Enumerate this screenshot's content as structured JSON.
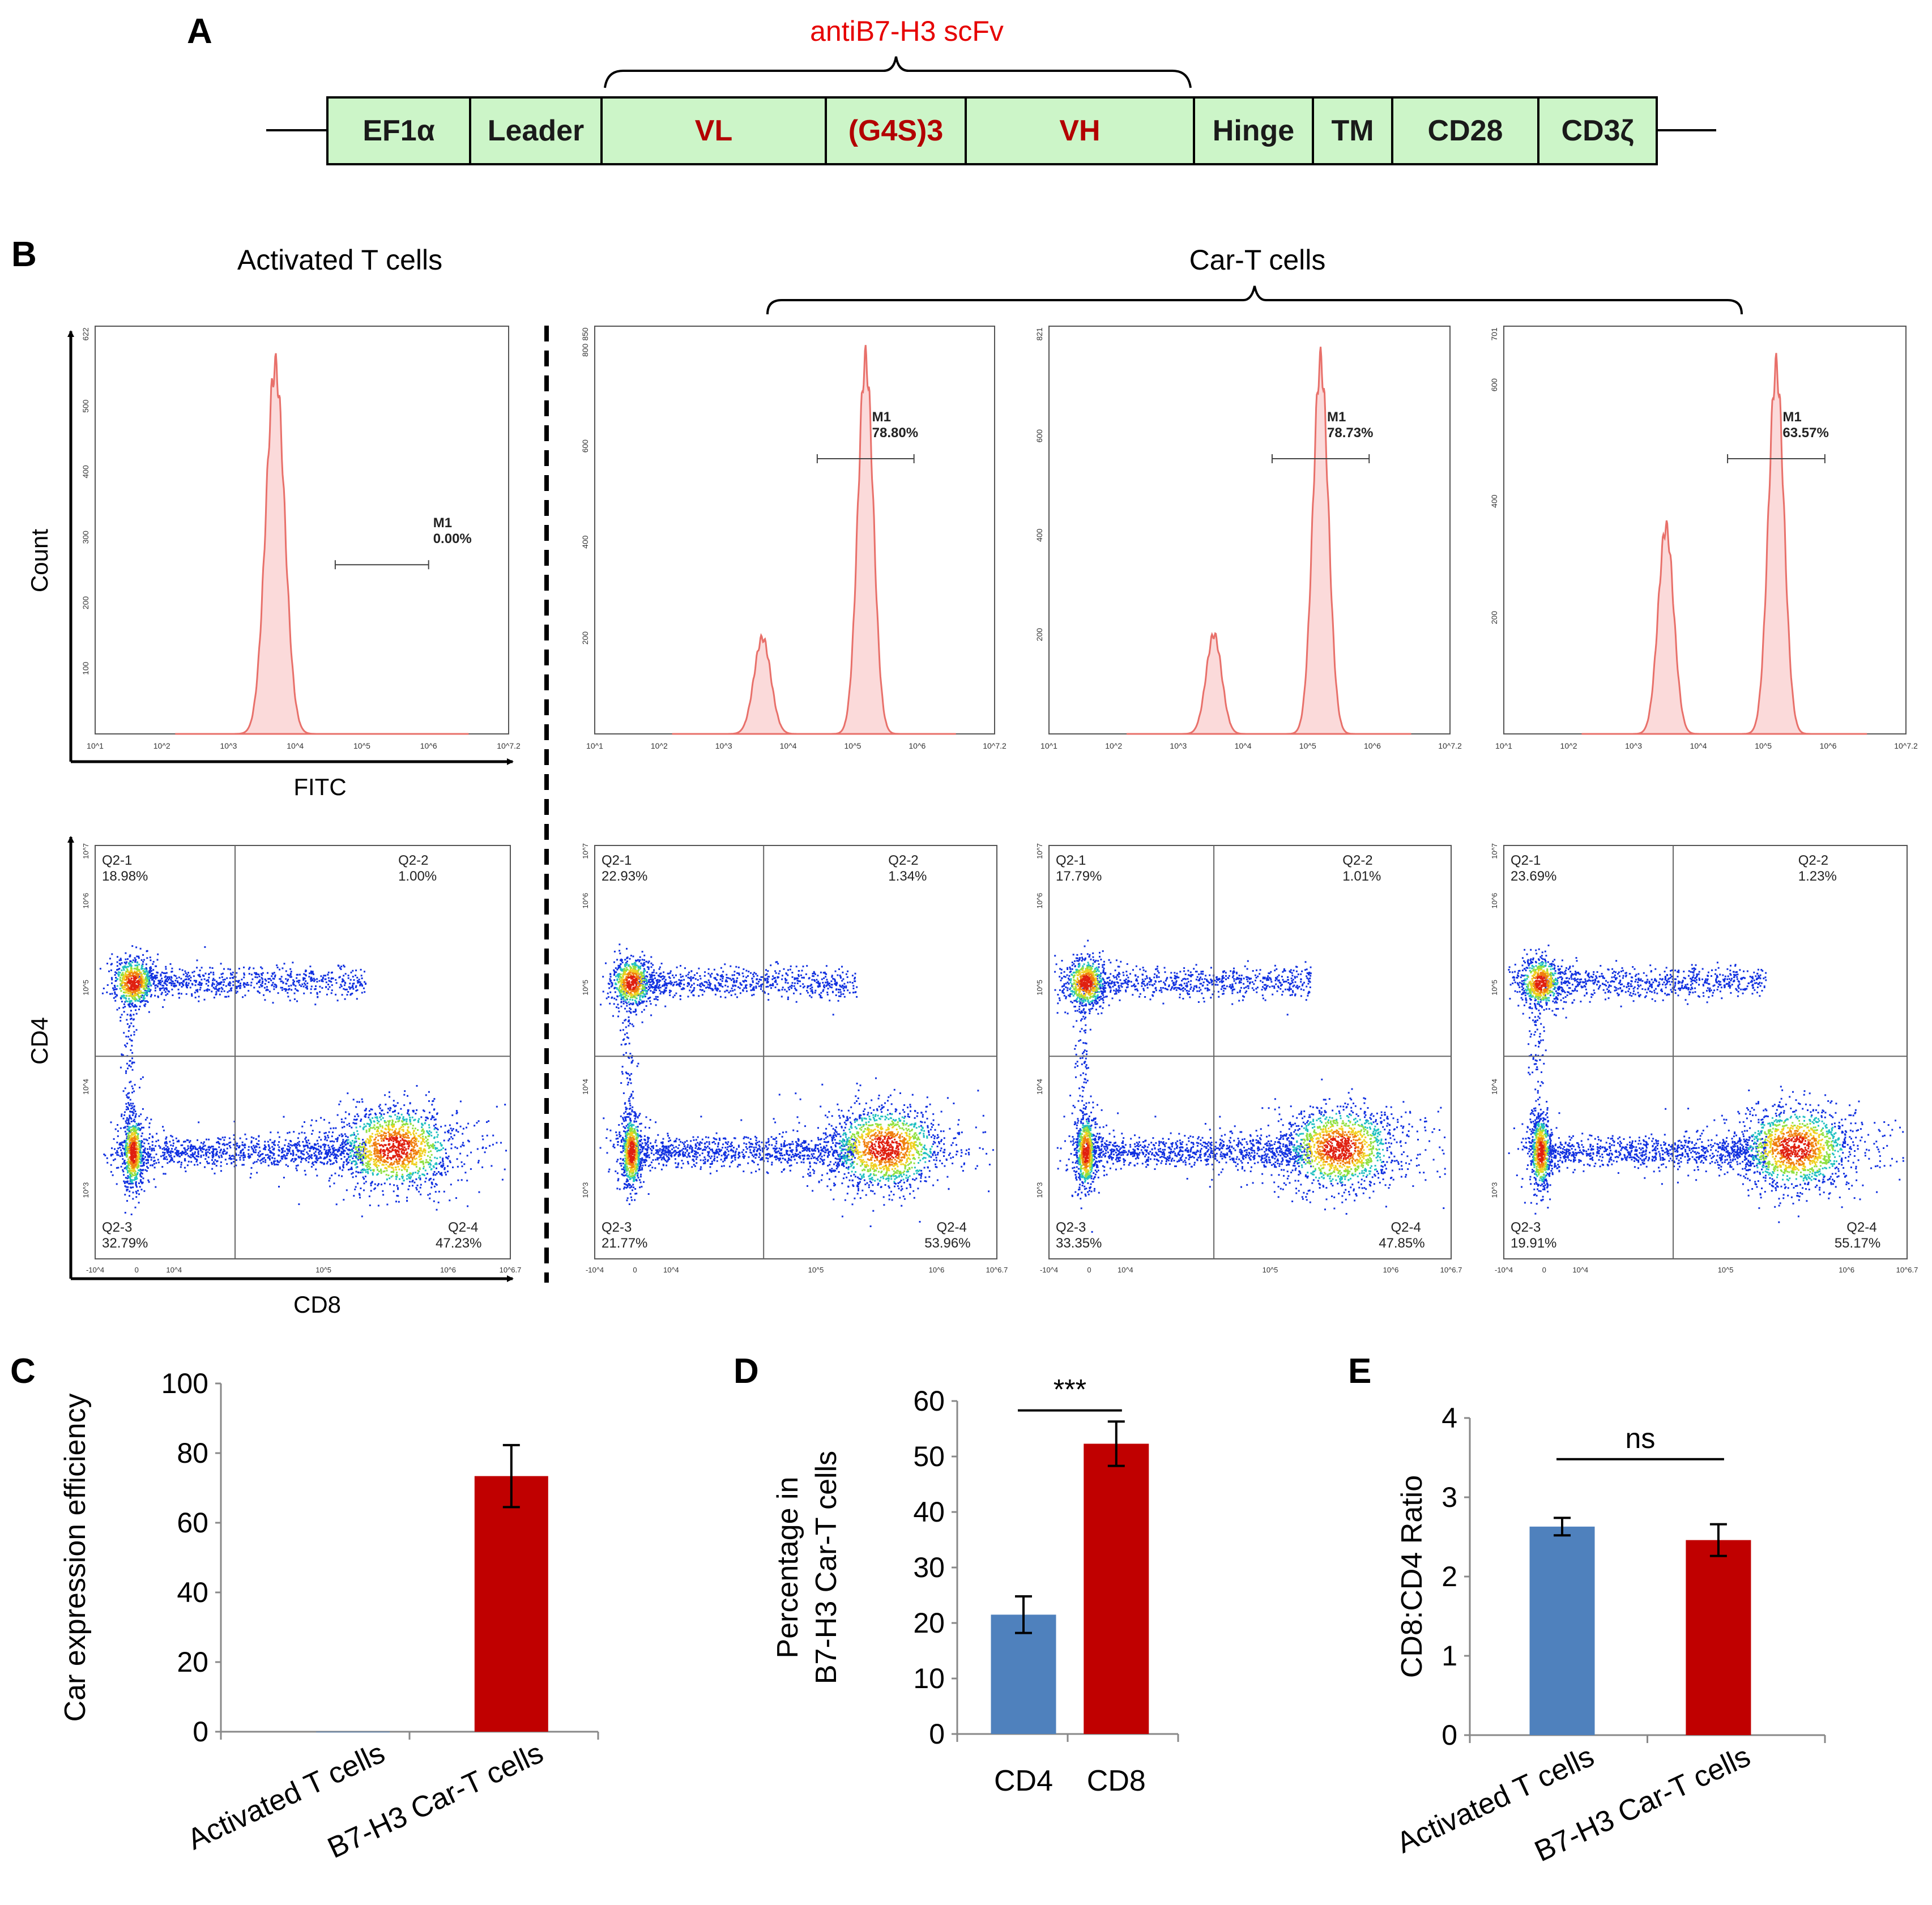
{
  "panel_labels": {
    "a": "A",
    "b": "B",
    "c": "C",
    "d": "D",
    "e": "E"
  },
  "construct": {
    "scfv_label": "antiB7-H3 scFv",
    "segments": [
      {
        "label": "EF1α",
        "color": "#1a1a1a"
      },
      {
        "label": "Leader",
        "color": "#1a1a1a"
      },
      {
        "label": "VL",
        "color": "#b30000"
      },
      {
        "label": "(G4S)3",
        "color": "#b30000"
      },
      {
        "label": "VH",
        "color": "#b30000"
      },
      {
        "label": "Hinge",
        "color": "#1a1a1a"
      },
      {
        "label": "TM",
        "color": "#1a1a1a"
      },
      {
        "label": "CD28",
        "color": "#1a1a1a"
      },
      {
        "label": "CD3ζ",
        "color": "#1a1a1a"
      }
    ],
    "box_fill": "#ccf5c8",
    "scfv_color": "#e60000"
  },
  "panel_b": {
    "left_title": "Activated T cells",
    "right_title": "Car-T cells",
    "hist_ylabel": "Count",
    "hist_xlabel": "FITC",
    "dot_ylabel": "CD4",
    "dot_xlabel": "CD8",
    "gate_name": "M1",
    "hist_x_ticks": [
      "10^1",
      "10^2",
      "10^3",
      "10^4",
      "10^5",
      "10^6",
      "10^7.2"
    ],
    "dot_x_ticks": [
      "-10^4",
      "0",
      "10^4",
      "10^5",
      "10^6",
      "10^6.7"
    ],
    "dot_y_ticks": [
      "10^7",
      "10^6",
      "10^5",
      "10^4",
      "10^3"
    ],
    "hist_color": "#e8706a",
    "histograms": [
      {
        "gate_pct": "0.00%",
        "ymax_tick": "622",
        "y_ticks": [
          "100",
          "200",
          "300",
          "400",
          "500"
        ],
        "peaks": [
          [
            3.7,
            560,
            0.14
          ]
        ]
      },
      {
        "gate_pct": "78.80%",
        "ymax_tick": "850",
        "y_ticks": [
          "200",
          "400",
          "600",
          "800"
        ],
        "peaks": [
          [
            3.6,
            200,
            0.13
          ],
          [
            5.2,
            780,
            0.12
          ]
        ]
      },
      {
        "gate_pct": "78.73%",
        "ymax_tick": "821",
        "y_ticks": [
          "200",
          "400",
          "600"
        ],
        "peaks": [
          [
            3.55,
            200,
            0.12
          ],
          [
            5.2,
            750,
            0.12
          ]
        ]
      },
      {
        "gate_pct": "63.57%",
        "ymax_tick": "701",
        "y_ticks": [
          "200",
          "400",
          "600"
        ],
        "peaks": [
          [
            3.5,
            355,
            0.12
          ],
          [
            5.2,
            630,
            0.12
          ]
        ]
      }
    ],
    "dot_plots": [
      {
        "q1": "Q2-1",
        "q1v": "18.98%",
        "q2": "Q2-2",
        "q2v": "1.00%",
        "q3": "Q2-3",
        "q3v": "32.79%",
        "q4": "Q2-4",
        "q4v": "47.23%"
      },
      {
        "q1": "Q2-1",
        "q1v": "22.93%",
        "q2": "Q2-2",
        "q2v": "1.34%",
        "q3": "Q2-3",
        "q3v": "21.77%",
        "q4": "Q2-4",
        "q4v": "53.96%"
      },
      {
        "q1": "Q2-1",
        "q1v": "17.79%",
        "q2": "Q2-2",
        "q2v": "1.01%",
        "q3": "Q2-3",
        "q3v": "33.35%",
        "q4": "Q2-4",
        "q4v": "47.85%"
      },
      {
        "q1": "Q2-1",
        "q1v": "23.69%",
        "q2": "Q2-2",
        "q2v": "1.23%",
        "q3": "Q2-3",
        "q3v": "19.91%",
        "q4": "Q2-4",
        "q4v": "55.17%"
      }
    ]
  },
  "chart_data": [
    {
      "type": "bar",
      "panel": "C",
      "title": "",
      "xlabel": "",
      "ylabel": "Car expression efficiency",
      "categories": [
        "Activated T cells",
        "B7-H3 Car-T cells"
      ],
      "values": [
        0,
        73.4
      ],
      "errors": [
        0,
        8.9
      ],
      "colors": [
        "#4f81bd",
        "#c00000"
      ],
      "ylim": [
        0,
        100
      ],
      "yticks": [
        0,
        20,
        40,
        60,
        80,
        100
      ],
      "significance": ""
    },
    {
      "type": "bar",
      "panel": "D",
      "title": "",
      "xlabel": "",
      "ylabel": "Percentage in B7-H3 Car-T cells",
      "categories": [
        "CD4",
        "CD8"
      ],
      "values": [
        21.5,
        52.3
      ],
      "errors": [
        3.3,
        4.0
      ],
      "colors": [
        "#4f81bd",
        "#c00000"
      ],
      "ylim": [
        0,
        60
      ],
      "yticks": [
        0,
        10,
        20,
        30,
        40,
        50,
        60
      ],
      "significance": "***"
    },
    {
      "type": "bar",
      "panel": "E",
      "title": "",
      "xlabel": "",
      "ylabel": "CD8:CD4 Ratio",
      "categories": [
        "Activated T cells",
        "B7-H3 Car-T cells"
      ],
      "values": [
        2.63,
        2.46
      ],
      "errors": [
        0.11,
        0.2
      ],
      "colors": [
        "#4f81bd",
        "#c00000"
      ],
      "ylim": [
        0,
        4
      ],
      "yticks": [
        0,
        1,
        2,
        3,
        4
      ],
      "significance": "ns"
    }
  ]
}
